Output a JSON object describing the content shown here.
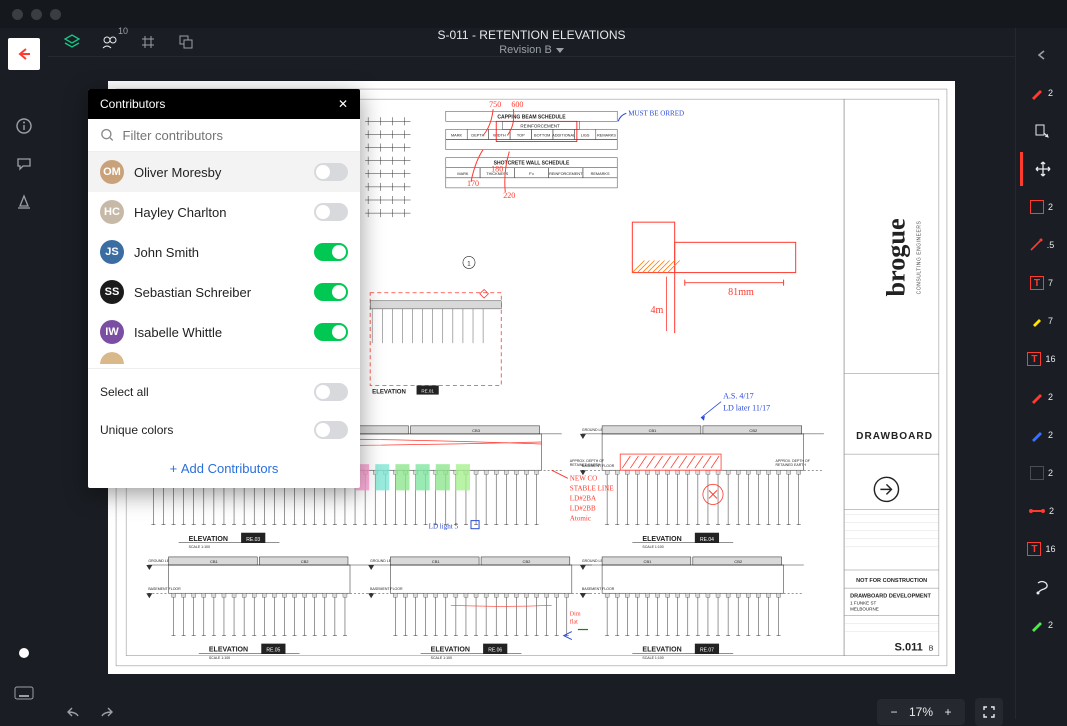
{
  "colors": {
    "bg": "#1a1d23",
    "panel_head": "#000000",
    "accent_green": "#00c853",
    "accent_red": "#ff3b30",
    "toggle_off": "#d7d9dc",
    "text_muted": "#9aa0a8"
  },
  "header": {
    "title": "S-011 - RETENTION ELEVATIONS",
    "revision_label": "Revision B"
  },
  "topbar_tools": {
    "contributors_badge": "10"
  },
  "zoom": {
    "value": "17%"
  },
  "contributors_panel": {
    "title": "Contributors",
    "search_placeholder": "Filter contributors",
    "items": [
      {
        "name": "Oliver Moresby",
        "enabled": false,
        "avatar_bg": "#c9a27a",
        "initials": "OM",
        "highlight": true
      },
      {
        "name": "Hayley Charlton",
        "enabled": false,
        "avatar_bg": "#c7b9a8",
        "initials": "HC",
        "highlight": false
      },
      {
        "name": "John Smith",
        "enabled": true,
        "avatar_bg": "#3b6da3",
        "initials": "JS",
        "highlight": false
      },
      {
        "name": "Sebastian Schreiber",
        "enabled": true,
        "avatar_bg": "#1b1b1b",
        "initials": "SS",
        "highlight": false
      },
      {
        "name": "Isabelle Whittle",
        "enabled": true,
        "avatar_bg": "#7a4fa3",
        "initials": "IW",
        "highlight": false
      }
    ],
    "more_avatar_bg": "#d9b98a",
    "select_all": {
      "label": "Select all",
      "enabled": false
    },
    "unique_colors": {
      "label": "Unique colors",
      "enabled": false
    },
    "add_label": "Add Contributors"
  },
  "right_tools": [
    {
      "kind": "chevron",
      "color": "#9aa0a8",
      "count": ""
    },
    {
      "kind": "pen",
      "color": "#ff3b30",
      "count": "2"
    },
    {
      "kind": "cursor",
      "color": "#e8eaed",
      "count": ""
    },
    {
      "kind": "move",
      "color": "#e8eaed",
      "count": "",
      "active": true
    },
    {
      "kind": "rect",
      "color": "#ff3b30",
      "count": "2"
    },
    {
      "kind": "ruler",
      "color": "#ff3b30",
      "count": ".5"
    },
    {
      "kind": "text",
      "color": "#ff3b30",
      "count": "7"
    },
    {
      "kind": "hl",
      "color": "#ffe500",
      "count": "7"
    },
    {
      "kind": "text",
      "color": "#ff3b30",
      "count": "16"
    },
    {
      "kind": "pen",
      "color": "#ff3b30",
      "count": "2"
    },
    {
      "kind": "pen",
      "color": "#3b6fff",
      "count": "2"
    },
    {
      "kind": "rect",
      "color": "#4a4d53",
      "count": "2"
    },
    {
      "kind": "line",
      "color": "#ff3b30",
      "count": "2"
    },
    {
      "kind": "text",
      "color": "#ff3b30",
      "count": "16"
    },
    {
      "kind": "lasso",
      "color": "#e8eaed",
      "count": ""
    },
    {
      "kind": "pen",
      "color": "#4fe84f",
      "count": "2"
    }
  ],
  "drawing": {
    "titleblock": {
      "company": "brogue",
      "company_sub": "CONSULTING ENGINEERS",
      "board": "DRAWBOARD",
      "not_for": "NOT FOR CONSTRUCTION",
      "dev": "DRAWBOARD DEVELOPMENT",
      "addr1": "1 FUNKE ST",
      "addr2": "MELBOURNE",
      "sheet_no": "S.011",
      "sheet_suffix": "B"
    },
    "schedules": {
      "capping": {
        "title": "CAPPING BEAM SCHEDULE",
        "reinforcement": "REINFORCEMENT",
        "cols": [
          "MARK",
          "DEPTH",
          "WIDTH",
          "TOP",
          "BOTTOM",
          "ADDITIONAL",
          "LIGS",
          "REMARKS"
        ]
      },
      "shotcrete": {
        "title": "SHOTCRETE WALL SCHEDULE",
        "cols": [
          "MARK",
          "THICKNESS",
          "F'c",
          "REINFORCEMENT",
          "REMARKS"
        ]
      }
    },
    "annotations": {
      "red_top": [
        "750",
        "600",
        "180",
        "170",
        "220"
      ],
      "blue_top": "MUST BE ORRED",
      "red_dim_h": "81mm",
      "red_dim_v": "4m",
      "blue_mid": [
        "A.S. 4/17",
        "LD later 11/17"
      ],
      "red_note": [
        "NEW CO",
        "STABLE LINE",
        "LD#2BA",
        "LD#2BB",
        "Atomic"
      ],
      "blue_small": "LD light 5"
    },
    "elevations": [
      {
        "label": "ELEVATION",
        "tag": "RE.03",
        "scale": "SCALE 1:100"
      },
      {
        "label": "ELEVATION",
        "tag": "RE.04",
        "scale": "SCALE 1:100"
      },
      {
        "label": "ELEVATION",
        "tag": "RE.05",
        "scale": "SCALE 1:100"
      },
      {
        "label": "ELEVATION",
        "tag": "RE.06",
        "scale": "SCALE 1:100"
      },
      {
        "label": "ELEVATION",
        "tag": "RE.07",
        "scale": "SCALE 1:100"
      }
    ],
    "cb_labels": [
      "CB1",
      "CB2",
      "CB3"
    ],
    "levels": {
      "ground": "GROUND LEVEL",
      "basement": "BASEMENT FLOOR"
    }
  }
}
